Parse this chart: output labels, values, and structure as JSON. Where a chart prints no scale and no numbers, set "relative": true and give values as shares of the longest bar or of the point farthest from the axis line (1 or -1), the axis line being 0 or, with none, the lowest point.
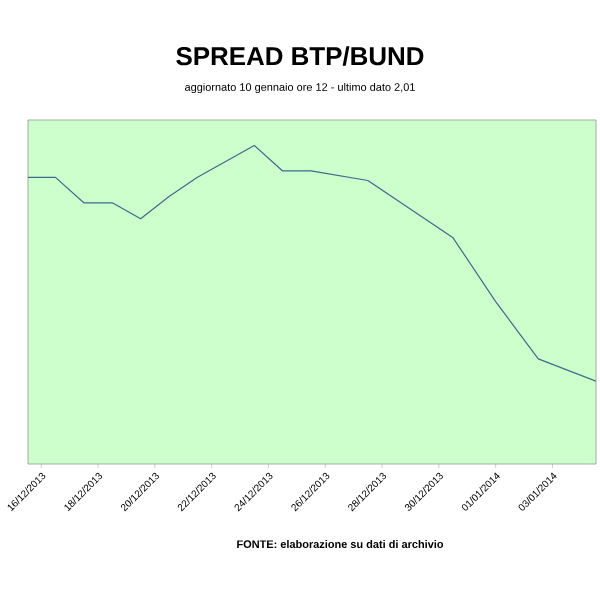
{
  "chart_data": {
    "type": "line",
    "title": "SPREAD BTP/BUND",
    "subtitle": "aggiornato 10 gennaio ore 12 - ultimo dato 2,01",
    "annotations": [
      "FONTE: elaborazione su dati di archivio"
    ],
    "relative": true,
    "x": [
      "2013-12-15T12:48",
      "2013-12-16T12:00",
      "2013-12-17T12:00",
      "2013-12-18T12:00",
      "2013-12-19T12:00",
      "2013-12-20T12:00",
      "2013-12-21T12:00",
      "2013-12-23T12:00",
      "2013-12-24T12:00",
      "2013-12-25T12:00",
      "2013-12-27T12:00",
      "2013-12-30T12:00",
      "2014-01-01T00:00",
      "2014-01-02T12:00",
      "2014-01-04T12:48"
    ],
    "series": [
      {
        "color": "#3f6a8a",
        "values": [
          0.9,
          0.9,
          0.82,
          0.82,
          0.77,
          0.84,
          0.9,
          1.0,
          0.92,
          0.92,
          0.89,
          0.71,
          0.51,
          0.33,
          0.26
        ]
      }
    ],
    "xlim": [
      "2013-12-15T12:48",
      "2014-01-04T12:48"
    ],
    "xticks": [
      {
        "value": "2013-12-16",
        "label": "16/12/2013"
      },
      {
        "value": "2013-12-18",
        "label": "18/12/2013"
      },
      {
        "value": "2013-12-20",
        "label": "20/12/2013"
      },
      {
        "value": "2013-12-22",
        "label": "22/12/2013"
      },
      {
        "value": "2013-12-24",
        "label": "24/12/2013"
      },
      {
        "value": "2013-12-26",
        "label": "26/12/2013"
      },
      {
        "value": "2013-12-28",
        "label": "28/12/2013"
      },
      {
        "value": "2013-12-30",
        "label": "30/12/2013"
      },
      {
        "value": "2014-01-01",
        "label": "01/01/2014"
      },
      {
        "value": "2014-01-03",
        "label": "03/01/2014"
      }
    ],
    "marker": "none",
    "line_style": "solid"
  }
}
